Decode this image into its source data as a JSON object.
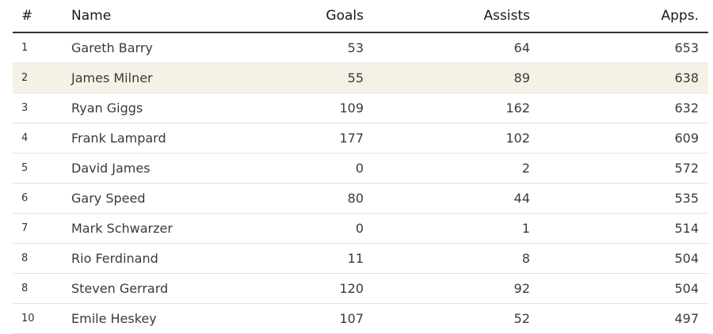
{
  "table": {
    "headers": {
      "rank": "#",
      "name": "Name",
      "goals": "Goals",
      "assists": "Assists",
      "apps": "Apps."
    },
    "rows": [
      {
        "rank": "1",
        "name": "Gareth Barry",
        "goals": "53",
        "assists": "64",
        "apps": "653"
      },
      {
        "rank": "2",
        "name": "James Milner",
        "goals": "55",
        "assists": "89",
        "apps": "638"
      },
      {
        "rank": "3",
        "name": "Ryan Giggs",
        "goals": "109",
        "assists": "162",
        "apps": "632"
      },
      {
        "rank": "4",
        "name": "Frank Lampard",
        "goals": "177",
        "assists": "102",
        "apps": "609"
      },
      {
        "rank": "5",
        "name": "David James",
        "goals": "0",
        "assists": "2",
        "apps": "572"
      },
      {
        "rank": "6",
        "name": "Gary Speed",
        "goals": "80",
        "assists": "44",
        "apps": "535"
      },
      {
        "rank": "7",
        "name": "Mark Schwarzer",
        "goals": "0",
        "assists": "1",
        "apps": "514"
      },
      {
        "rank": "8",
        "name": "Rio Ferdinand",
        "goals": "11",
        "assists": "8",
        "apps": "504"
      },
      {
        "rank": "8",
        "name": "Steven Gerrard",
        "goals": "120",
        "assists": "92",
        "apps": "504"
      },
      {
        "rank": "10",
        "name": "Emile Heskey",
        "goals": "107",
        "assists": "52",
        "apps": "497"
      }
    ],
    "highlight_color": "#f6f1e6"
  }
}
